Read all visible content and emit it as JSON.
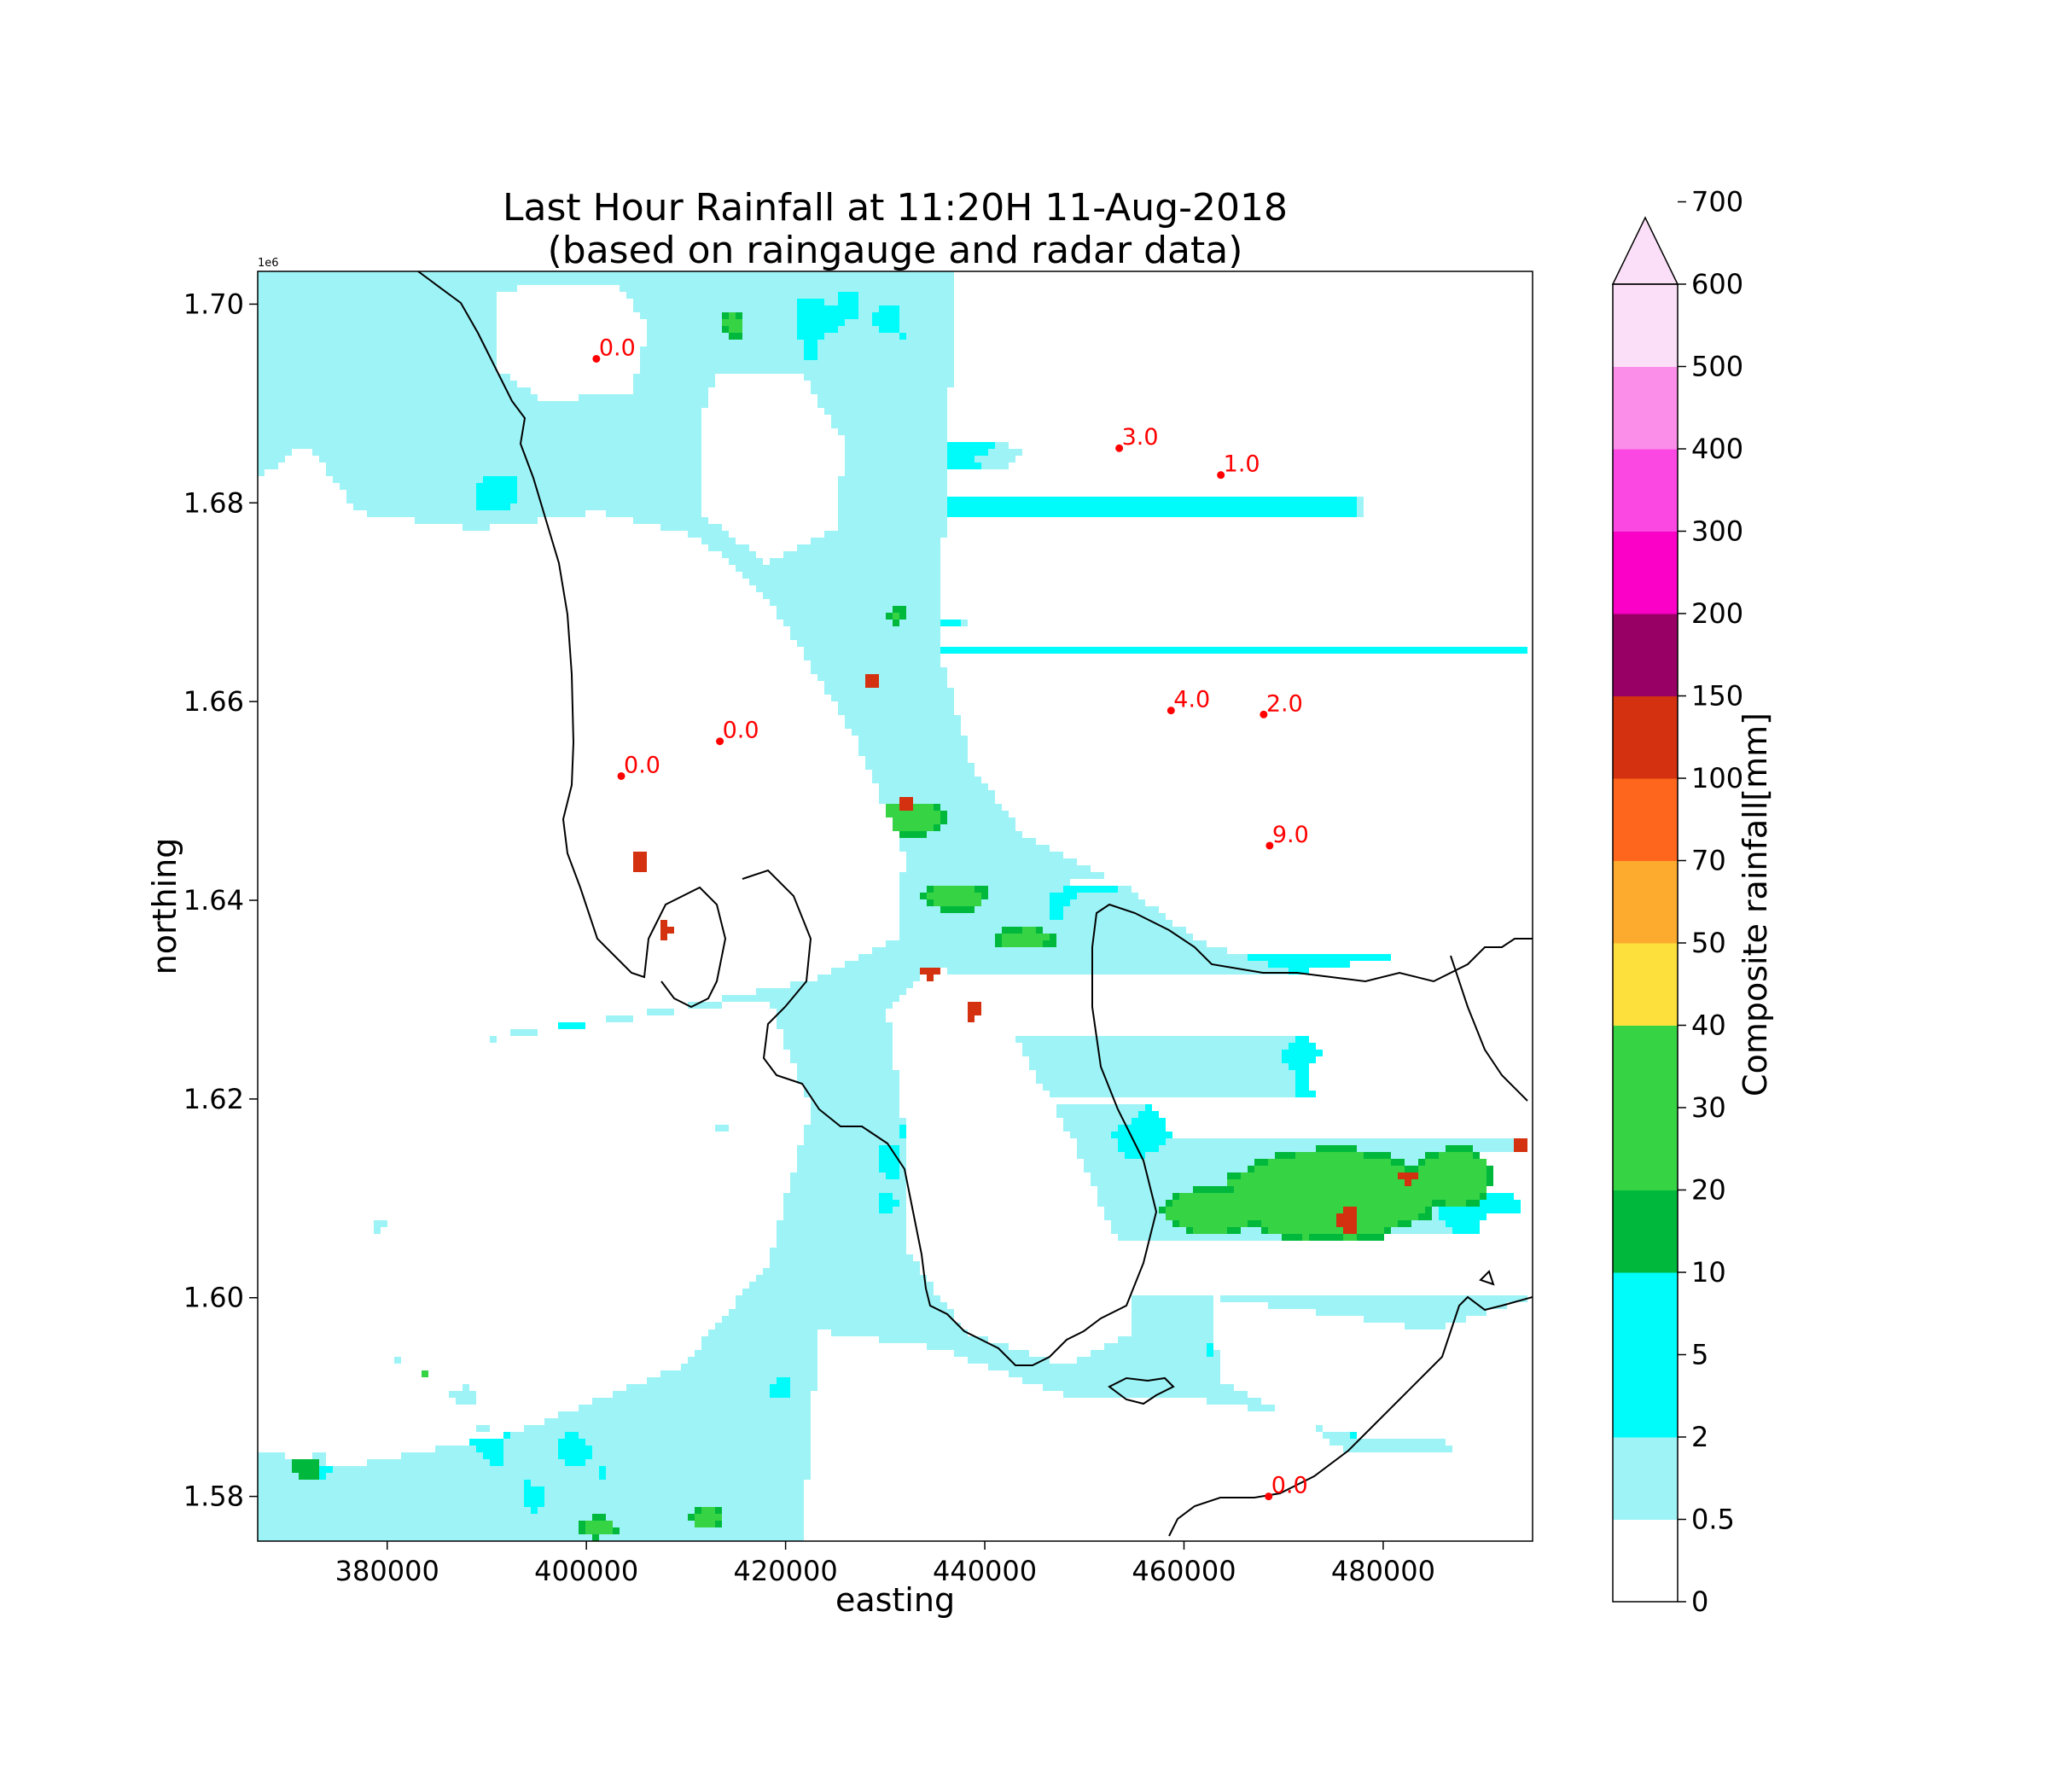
{
  "chart_data": {
    "type": "heatmap",
    "title": "Last Hour Rainfall at 11:20H 11-Aug-2018",
    "subtitle": "(based on raingauge and radar data)",
    "xlabel": "easting",
    "ylabel": "northing",
    "y_offset_label": "1e6",
    "xlim": [
      367000,
      495000
    ],
    "ylim": [
      1.5755,
      1.7033
    ],
    "x_ticks": [
      380000,
      400000,
      420000,
      440000,
      460000,
      480000
    ],
    "x_tick_labels": [
      "380000",
      "400000",
      "420000",
      "440000",
      "460000",
      "480000"
    ],
    "y_ticks": [
      1.58,
      1.6,
      1.62,
      1.64,
      1.66,
      1.68,
      1.7
    ],
    "y_tick_labels": [
      "1.58",
      "1.60",
      "1.62",
      "1.64",
      "1.66",
      "1.68",
      "1.70"
    ],
    "colorbar": {
      "label": "Composite rainfall[mm]",
      "bounds": [
        0,
        0.5,
        2,
        5,
        10,
        20,
        30,
        40,
        50,
        70,
        100,
        150,
        200,
        300,
        400,
        500,
        600,
        700
      ],
      "tick_labels": [
        "0",
        "0.5",
        "2",
        "5",
        "10",
        "20",
        "30",
        "40",
        "50",
        "70",
        "100",
        "150",
        "200",
        "300",
        "400",
        "500",
        "600",
        "700"
      ],
      "colors": [
        "#ffffff",
        "#9ef3f6",
        "#00fbfb",
        "#00fbfb",
        "#00b93c",
        "#36d344",
        "#36d344",
        "#fde03c",
        "#fdab2f",
        "#fe661d",
        "#d3310f",
        "#990066",
        "#fb00c7",
        "#fb48e3",
        "#fb8ee8",
        "#fbdff8"
      ],
      "extend_max_color": "#fbdff8"
    },
    "stations": [
      {
        "x": 401000,
        "y": 1.6945,
        "label": "0.0"
      },
      {
        "x": 453500,
        "y": 1.6855,
        "label": "3.0"
      },
      {
        "x": 463700,
        "y": 1.6828,
        "label": "1.0"
      },
      {
        "x": 458700,
        "y": 1.6591,
        "label": "4.0"
      },
      {
        "x": 468000,
        "y": 1.6587,
        "label": "2.0"
      },
      {
        "x": 413400,
        "y": 1.656,
        "label": "0.0"
      },
      {
        "x": 403500,
        "y": 1.6525,
        "label": "0.0"
      },
      {
        "x": 468600,
        "y": 1.6455,
        "label": "9.0"
      },
      {
        "x": 468500,
        "y": 1.58,
        "label": "0.0"
      }
    ],
    "station_color": "#ff0000",
    "coastline_color": "#000000",
    "grid": false
  }
}
